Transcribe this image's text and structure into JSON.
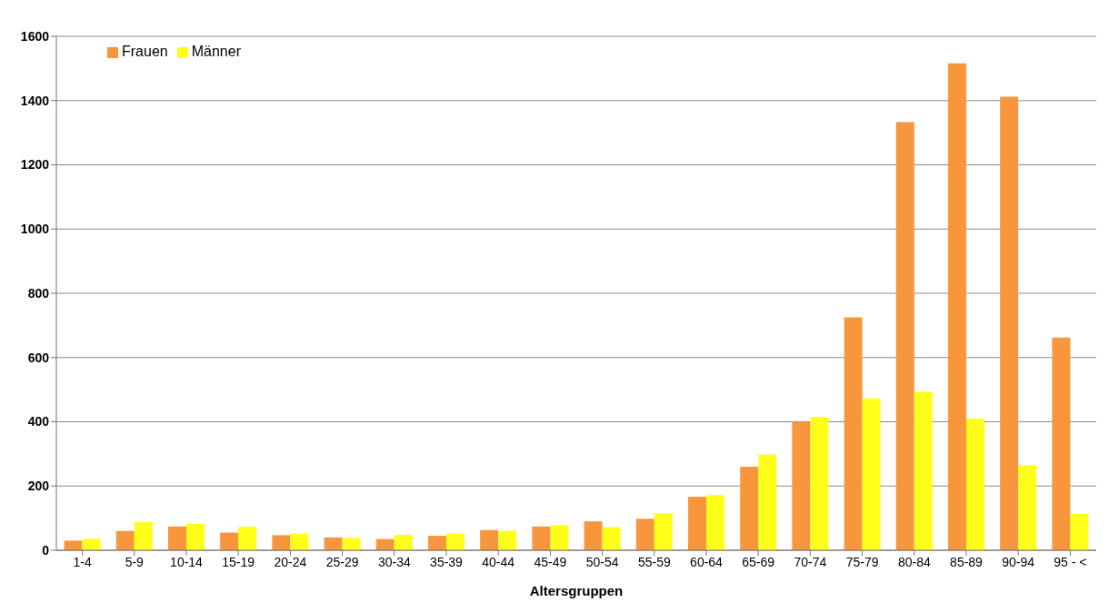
{
  "chart_data": {
    "type": "bar",
    "xlabel": "Altersgruppen",
    "categories": [
      "1-4",
      "5-9",
      "10-14",
      "15-19",
      "20-24",
      "25-29",
      "30-34",
      "35-39",
      "40-44",
      "45-49",
      "50-54",
      "55-59",
      "60-64",
      "65-69",
      "70-74",
      "75-79",
      "80-84",
      "85-89",
      "90-94",
      "95 - <"
    ],
    "series": [
      {
        "name": "Frauen",
        "color": "#f7963c",
        "values": [
          30,
          60,
          74,
          55,
          47,
          40,
          35,
          45,
          63,
          74,
          90,
          98,
          167,
          260,
          400,
          725,
          1333,
          1516,
          1412,
          662
        ]
      },
      {
        "name": "Männer",
        "color": "#ffff1a",
        "values": [
          36,
          88,
          82,
          73,
          52,
          39,
          48,
          52,
          60,
          78,
          72,
          115,
          172,
          298,
          415,
          473,
          493,
          410,
          265,
          113
        ]
      }
    ],
    "ylim": [
      0,
      1600
    ],
    "yticks": [
      0,
      200,
      400,
      600,
      800,
      1000,
      1200,
      1400,
      1600
    ],
    "grid": "y",
    "legend": "top left"
  }
}
